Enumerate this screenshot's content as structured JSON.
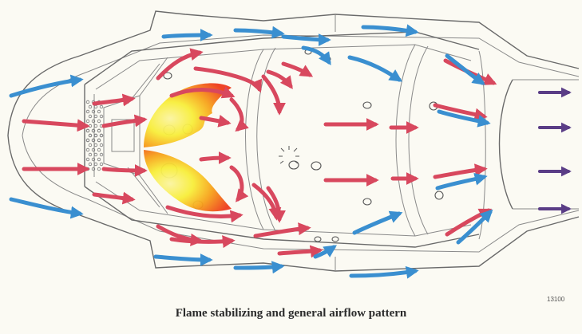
{
  "caption": "Flame stabilizing and general airflow pattern",
  "figure_number": "13100",
  "colors": {
    "cool_air": "#3a8fd0",
    "hot_air": "#d8485e",
    "exhaust": "#5a3d86",
    "flame_outer": "#ee3a1c",
    "flame_mid": "#f7a21b",
    "flame_core": "#f8ee3a",
    "outline": "#6a6a6a"
  }
}
